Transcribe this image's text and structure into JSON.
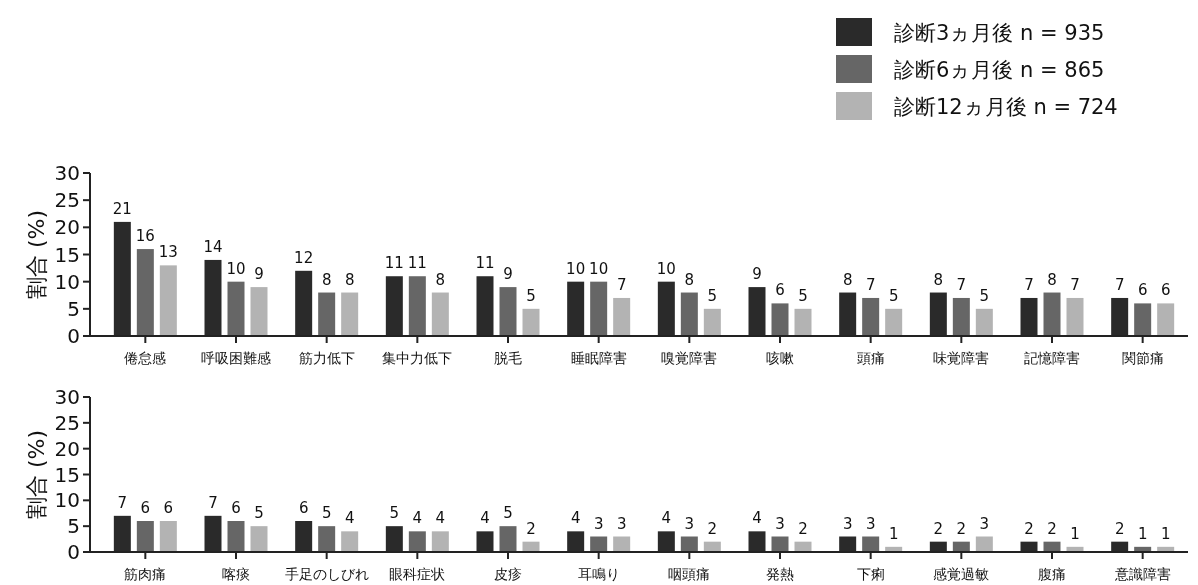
{
  "chart_data": [
    {
      "type": "bar",
      "ylabel": "割合 (%)",
      "categories": [
        "倦怠感",
        "呼吸困難感",
        "筋力低下",
        "集中力低下",
        "脱毛",
        "睡眠障害",
        "嗅覚障害",
        "咳嗽",
        "頭痛",
        "味覚障害",
        "記憶障害",
        "関節痛"
      ],
      "series": [
        {
          "name": "診断3ヵ月後 n = 935",
          "color": "#2a2a2a",
          "values": [
            21,
            14,
            12,
            11,
            11,
            10,
            10,
            9,
            8,
            8,
            7,
            7
          ]
        },
        {
          "name": "診断6ヵ月後 n = 865",
          "color": "#666666",
          "values": [
            16,
            10,
            8,
            11,
            9,
            10,
            8,
            6,
            7,
            7,
            8,
            6
          ]
        },
        {
          "name": "診断12ヵ月後 n = 724",
          "color": "#b3b3b3",
          "values": [
            13,
            9,
            8,
            8,
            5,
            7,
            5,
            5,
            5,
            5,
            7,
            6
          ]
        }
      ],
      "ylim": [
        0,
        30
      ],
      "yticks": [
        0,
        5,
        10,
        15,
        20,
        25,
        30
      ],
      "data_labels": true,
      "legend": "top right",
      "grid": false
    },
    {
      "type": "bar",
      "ylabel": "割合 (%)",
      "categories": [
        "筋肉痛",
        "喀痰",
        "手足のしびれ",
        "眼科症状",
        "皮疹",
        "耳鳴り",
        "咽頭痛",
        "発熱",
        "下痢",
        "感覚過敏",
        "腹痛",
        "意識障害"
      ],
      "series": [
        {
          "color": "#2a2a2a",
          "values": [
            7,
            7,
            6,
            5,
            4,
            4,
            4,
            4,
            3,
            2,
            2,
            2
          ]
        },
        {
          "color": "#666666",
          "values": [
            6,
            6,
            5,
            4,
            5,
            3,
            3,
            3,
            3,
            2,
            2,
            1
          ]
        },
        {
          "color": "#b3b3b3",
          "values": [
            6,
            5,
            4,
            4,
            2,
            3,
            2,
            2,
            1,
            3,
            1,
            1
          ]
        }
      ],
      "ylim": [
        0,
        30
      ],
      "yticks": [
        0,
        5,
        10,
        15,
        20,
        25,
        30
      ],
      "data_labels": true,
      "legend": false,
      "grid": false
    }
  ]
}
